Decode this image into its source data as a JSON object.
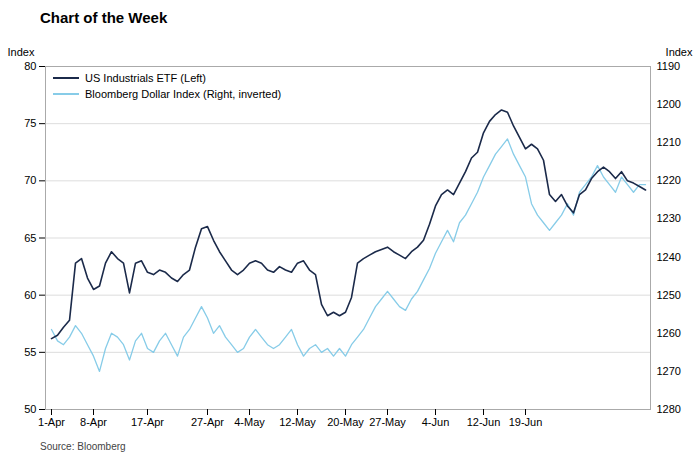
{
  "chart_data": {
    "type": "line",
    "title": "Chart of the Week",
    "source": "Source: Bloomberg",
    "ylabel": "Index",
    "y2label": "Index",
    "categories": [
      "1-Apr",
      null,
      null,
      null,
      null,
      null,
      null,
      "8-Apr",
      null,
      null,
      null,
      null,
      null,
      null,
      null,
      null,
      "17-Apr",
      null,
      null,
      null,
      null,
      null,
      null,
      null,
      null,
      null,
      "27-Apr",
      null,
      null,
      null,
      null,
      null,
      null,
      "4-May",
      null,
      null,
      null,
      null,
      null,
      null,
      null,
      "12-May",
      null,
      null,
      null,
      null,
      null,
      null,
      null,
      "20-May",
      null,
      null,
      null,
      null,
      null,
      null,
      "27-May",
      null,
      null,
      null,
      null,
      null,
      null,
      null,
      "4-Jun",
      null,
      null,
      null,
      null,
      null,
      null,
      null,
      "12-Jun",
      null,
      null,
      null,
      null,
      null,
      null,
      "19-Jun",
      null,
      null,
      null,
      null,
      null,
      null,
      null,
      null,
      null,
      null,
      null,
      null,
      null,
      null,
      null,
      null,
      null,
      null,
      null,
      null
    ],
    "ylim": [
      50,
      80
    ],
    "yticks": [
      50,
      55,
      60,
      65,
      70,
      75,
      80
    ],
    "y2lim": [
      1280,
      1190
    ],
    "y2ticks": [
      1190,
      1200,
      1210,
      1220,
      1230,
      1240,
      1250,
      1260,
      1270,
      1280
    ],
    "grid": true,
    "legend": "upper left",
    "series": [
      {
        "name": "US Industrials ETF (Left)",
        "color": "#1b2a4a",
        "axis": "y",
        "values": [
          56.2,
          56.5,
          57.2,
          57.8,
          62.8,
          63.2,
          61.5,
          60.5,
          60.8,
          62.8,
          63.8,
          63.2,
          62.8,
          60.2,
          62.8,
          63.0,
          62.0,
          61.8,
          62.2,
          62.0,
          61.5,
          61.2,
          61.8,
          62.2,
          64.2,
          65.8,
          66.0,
          64.8,
          63.8,
          63.0,
          62.2,
          61.8,
          62.2,
          62.8,
          63.0,
          62.8,
          62.2,
          62.0,
          62.5,
          62.2,
          62.0,
          62.8,
          63.0,
          62.2,
          61.8,
          59.2,
          58.2,
          58.5,
          58.2,
          58.5,
          59.8,
          62.8,
          63.2,
          63.5,
          63.8,
          64.0,
          64.2,
          63.8,
          63.5,
          63.2,
          63.8,
          64.2,
          64.8,
          66.2,
          67.8,
          68.8,
          69.2,
          68.8,
          69.8,
          70.8,
          72.0,
          72.5,
          74.2,
          75.2,
          75.8,
          76.2,
          76.0,
          74.8,
          73.8,
          72.8,
          73.2,
          72.8,
          71.8,
          68.8,
          68.2,
          68.8,
          67.8,
          67.2,
          68.8,
          69.2,
          70.2,
          70.8,
          71.2,
          70.8,
          70.2,
          70.8,
          70.0,
          69.8,
          69.5,
          69.2
        ]
      },
      {
        "name": "Bloomberg Dollar Index (Right, inverted)",
        "color": "#87cce8",
        "axis": "y2",
        "values": [
          1259,
          1262,
          1263,
          1261,
          1258,
          1260,
          1263,
          1266,
          1270,
          1264,
          1260,
          1261,
          1263,
          1267,
          1262,
          1260,
          1264,
          1265,
          1262,
          1260,
          1263,
          1266,
          1261,
          1259,
          1256,
          1253,
          1256,
          1260,
          1258,
          1261,
          1263,
          1265,
          1264,
          1261,
          1259,
          1261,
          1263,
          1264,
          1263,
          1261,
          1259,
          1263,
          1266,
          1264,
          1263,
          1265,
          1264,
          1266,
          1264,
          1266,
          1263,
          1261,
          1259,
          1256,
          1253,
          1251,
          1249,
          1251,
          1253,
          1254,
          1251,
          1249,
          1246,
          1243,
          1239,
          1236,
          1233,
          1236,
          1231,
          1229,
          1226,
          1223,
          1219,
          1216,
          1213,
          1211,
          1209,
          1213,
          1216,
          1219,
          1226,
          1229,
          1231,
          1233,
          1231,
          1229,
          1226,
          1229,
          1223,
          1221,
          1219,
          1216,
          1219,
          1221,
          1223,
          1219,
          1221,
          1223,
          1221,
          1221
        ]
      }
    ]
  }
}
